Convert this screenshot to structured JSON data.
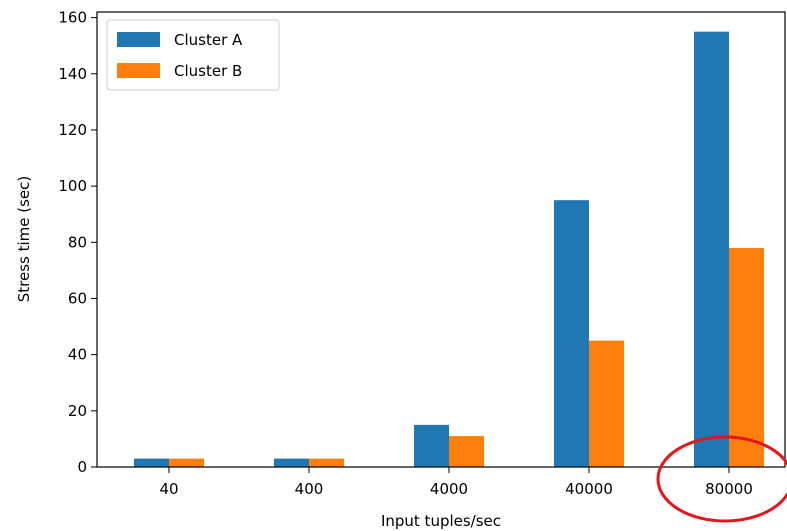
{
  "chart_data": {
    "type": "bar",
    "title": "",
    "xlabel": "Input tuples/sec",
    "ylabel": "Stress time (sec)",
    "categories": [
      "40",
      "400",
      "4000",
      "40000",
      "80000"
    ],
    "series": [
      {
        "name": "Cluster A",
        "color": "#1f77b4",
        "values": [
          3,
          3,
          15,
          95,
          155
        ]
      },
      {
        "name": "Cluster B",
        "color": "#ff7f0e",
        "values": [
          3,
          3,
          11,
          45,
          78
        ]
      }
    ],
    "ylim": [
      0,
      162
    ],
    "yticks": [
      0,
      20,
      40,
      60,
      80,
      100,
      120,
      140,
      160
    ],
    "grid": false,
    "legend": "top-left",
    "annotation": {
      "type": "ellipse",
      "color": "#e8141c",
      "target_category": "80000"
    }
  }
}
